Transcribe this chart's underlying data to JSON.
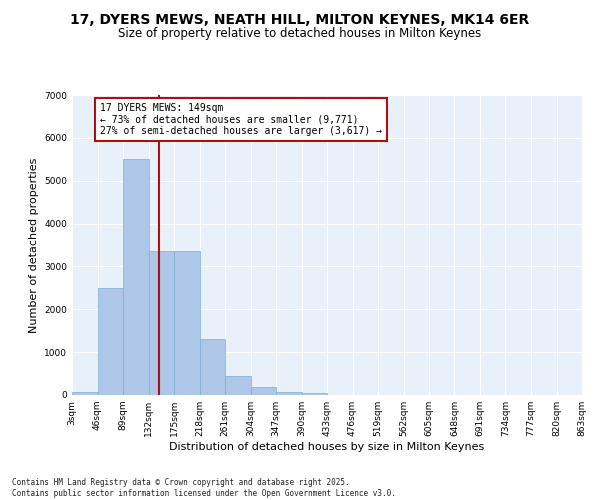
{
  "title_line1": "17, DYERS MEWS, NEATH HILL, MILTON KEYNES, MK14 6ER",
  "title_line2": "Size of property relative to detached houses in Milton Keynes",
  "xlabel": "Distribution of detached houses by size in Milton Keynes",
  "ylabel": "Number of detached properties",
  "bar_color": "#aec6e8",
  "bar_edgecolor": "#7bafd4",
  "background_color": "#e8f0fa",
  "grid_color": "#ffffff",
  "bin_edges": [
    3,
    46,
    89,
    132,
    175,
    218,
    261,
    304,
    347,
    390,
    433,
    476,
    519,
    562,
    605,
    648,
    691,
    734,
    777,
    820,
    863
  ],
  "bin_labels": [
    "3sqm",
    "46sqm",
    "89sqm",
    "132sqm",
    "175sqm",
    "218sqm",
    "261sqm",
    "304sqm",
    "347sqm",
    "390sqm",
    "433sqm",
    "476sqm",
    "519sqm",
    "562sqm",
    "605sqm",
    "648sqm",
    "691sqm",
    "734sqm",
    "777sqm",
    "820sqm",
    "863sqm"
  ],
  "values": [
    80,
    2500,
    5500,
    3350,
    3350,
    1300,
    450,
    180,
    80,
    40,
    10,
    5,
    2,
    1,
    1,
    0,
    0,
    0,
    0,
    0
  ],
  "property_size": 149,
  "vline_color": "#aa1111",
  "annotation_text": "17 DYERS MEWS: 149sqm\n← 73% of detached houses are smaller (9,771)\n27% of semi-detached houses are larger (3,617) →",
  "annotation_box_color": "#aa1111",
  "ylim": [
    0,
    7000
  ],
  "yticks": [
    0,
    1000,
    2000,
    3000,
    4000,
    5000,
    6000,
    7000
  ],
  "footnote": "Contains HM Land Registry data © Crown copyright and database right 2025.\nContains public sector information licensed under the Open Government Licence v3.0.",
  "title_fontsize": 10,
  "subtitle_fontsize": 8.5,
  "axis_label_fontsize": 8,
  "tick_fontsize": 6.5,
  "annotation_fontsize": 7,
  "footnote_fontsize": 5.5
}
